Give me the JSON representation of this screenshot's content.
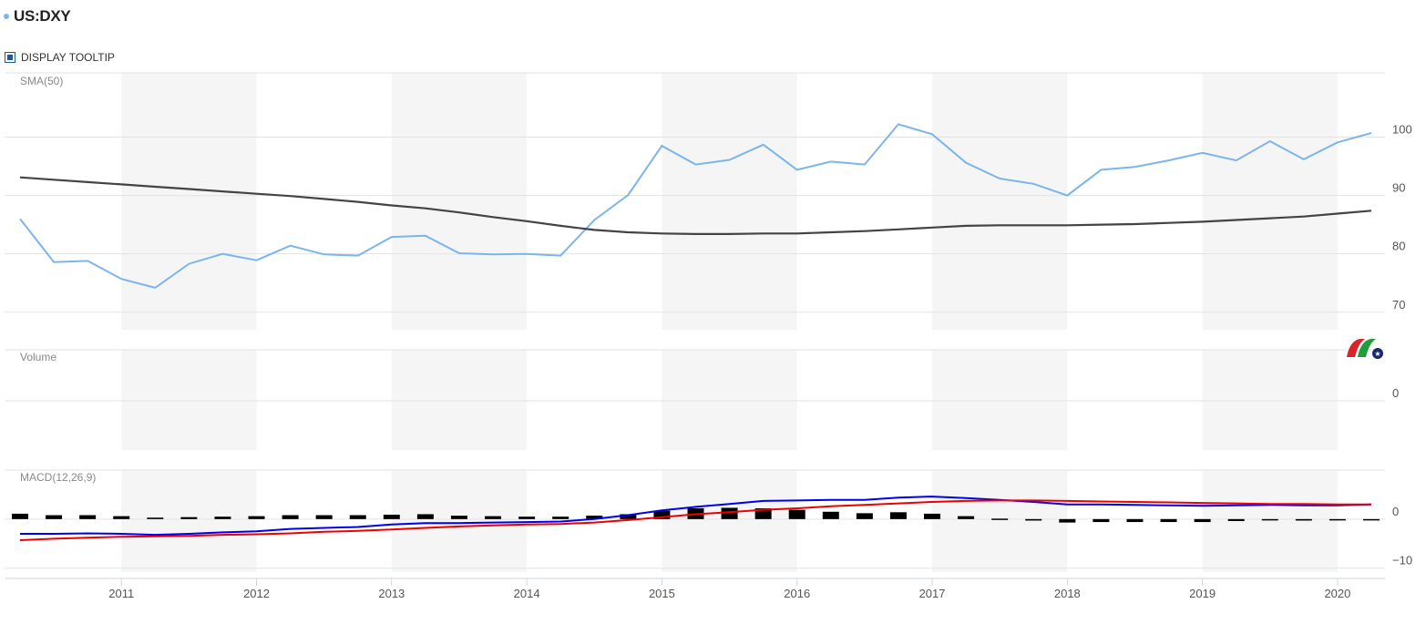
{
  "header": {
    "title": "US:DXY",
    "tooltip_label": "DISPLAY TOOLTIP"
  },
  "colors": {
    "price": "#7cb5ec",
    "sma": "#434348",
    "macd": "#0000ee",
    "signal": "#ee0000",
    "histogram": "#000000",
    "band": "#f5f5f5",
    "grid": "#e3e3e3"
  },
  "chart_data": [
    {
      "type": "line",
      "pane": "price",
      "label": "SMA(50)",
      "x_range": [
        2010.25,
        2020.25
      ],
      "y_ticks": [
        70,
        80,
        90,
        100
      ],
      "y_range": [
        67,
        111
      ],
      "x_tick_labels": [
        "2011",
        "2012",
        "2013",
        "2014",
        "2015",
        "2016",
        "2017",
        "2018",
        "2019",
        "2020"
      ],
      "x_ticks": [
        2011,
        2012,
        2013,
        2014,
        2015,
        2016,
        2017,
        2018,
        2019,
        2020
      ],
      "x": [
        2010.25,
        2010.5,
        2010.75,
        2011.0,
        2011.25,
        2011.5,
        2011.75,
        2012.0,
        2012.25,
        2012.5,
        2012.75,
        2013.0,
        2013.25,
        2013.5,
        2013.75,
        2014.0,
        2014.25,
        2014.5,
        2014.75,
        2015.0,
        2015.25,
        2015.5,
        2015.75,
        2016.0,
        2016.25,
        2016.5,
        2016.75,
        2017.0,
        2017.25,
        2017.5,
        2017.75,
        2018.0,
        2018.25,
        2018.5,
        2018.75,
        2019.0,
        2019.25,
        2019.5,
        2019.75,
        2020.0,
        2020.25
      ],
      "series": [
        {
          "values": [
            86.0,
            78.6,
            78.8,
            75.7,
            74.2,
            78.3,
            80.0,
            78.9,
            81.4,
            79.9,
            79.7,
            82.9,
            83.1,
            80.1,
            79.9,
            80.0,
            79.7,
            85.8,
            90.1,
            98.5,
            95.3,
            96.1,
            98.7,
            94.4,
            95.8,
            95.3,
            102.2,
            100.5,
            95.6,
            92.9,
            92.0,
            90.0,
            94.4,
            94.9,
            96.0,
            97.3,
            96.0,
            99.3,
            96.2,
            99.1,
            100.7
          ]
        },
        {
          "values": [
            93.1,
            92.7,
            92.3,
            91.9,
            91.5,
            91.1,
            90.7,
            90.3,
            89.9,
            89.4,
            88.9,
            88.3,
            87.8,
            87.1,
            86.3,
            85.6,
            84.8,
            84.1,
            83.7,
            83.5,
            83.4,
            83.4,
            83.5,
            83.5,
            83.7,
            83.9,
            84.2,
            84.5,
            84.8,
            84.9,
            84.9,
            84.9,
            85.0,
            85.1,
            85.3,
            85.5,
            85.8,
            86.1,
            86.4,
            86.9,
            87.4
          ]
        }
      ]
    },
    {
      "type": "bar",
      "pane": "volume",
      "label": "Volume",
      "y_ticks": [
        0
      ],
      "values": []
    },
    {
      "type": "line",
      "pane": "macd",
      "label": "MACD(12,26,9)",
      "y_ticks": [
        -10,
        0
      ],
      "y_range": [
        -10.8,
        10
      ],
      "x": [
        2010.25,
        2010.5,
        2010.75,
        2011.0,
        2011.25,
        2011.5,
        2011.75,
        2012.0,
        2012.25,
        2012.5,
        2012.75,
        2013.0,
        2013.25,
        2013.5,
        2013.75,
        2014.0,
        2014.25,
        2014.5,
        2014.75,
        2015.0,
        2015.25,
        2015.5,
        2015.75,
        2016.0,
        2016.25,
        2016.5,
        2016.75,
        2017.0,
        2017.25,
        2017.5,
        2017.75,
        2018.0,
        2018.25,
        2018.5,
        2018.75,
        2019.0,
        2019.25,
        2019.5,
        2019.75,
        2020.0,
        2020.25
      ],
      "series": [
        {
          "values": [
            -3.0,
            -3.0,
            -2.9,
            -3.0,
            -3.2,
            -3.0,
            -2.7,
            -2.5,
            -2.0,
            -1.8,
            -1.6,
            -1.1,
            -0.8,
            -0.8,
            -0.7,
            -0.6,
            -0.5,
            0.0,
            0.8,
            1.8,
            2.5,
            3.1,
            3.7,
            3.8,
            3.9,
            3.9,
            4.4,
            4.6,
            4.3,
            3.9,
            3.5,
            3.0,
            3.0,
            2.9,
            2.8,
            2.7,
            2.8,
            2.9,
            2.8,
            2.8,
            3.0
          ]
        },
        {
          "values": [
            -4.3,
            -4.0,
            -3.8,
            -3.6,
            -3.5,
            -3.4,
            -3.2,
            -3.1,
            -2.9,
            -2.6,
            -2.4,
            -2.1,
            -1.8,
            -1.5,
            -1.3,
            -1.1,
            -1.0,
            -0.7,
            -0.2,
            0.4,
            1.0,
            1.4,
            1.9,
            2.2,
            2.6,
            2.9,
            3.2,
            3.5,
            3.7,
            3.8,
            3.8,
            3.7,
            3.6,
            3.5,
            3.4,
            3.3,
            3.2,
            3.1,
            3.1,
            3.0,
            3.0
          ]
        },
        {
          "values": [
            1.1,
            0.8,
            0.8,
            0.6,
            0.3,
            0.4,
            0.5,
            0.6,
            0.8,
            0.8,
            0.8,
            0.9,
            1.0,
            0.7,
            0.6,
            0.5,
            0.5,
            0.7,
            1.0,
            1.7,
            2.2,
            2.3,
            2.2,
            1.9,
            1.5,
            1.2,
            1.4,
            1.1,
            0.6,
            0.1,
            -0.3,
            -0.7,
            -0.6,
            -0.6,
            -0.6,
            -0.6,
            -0.4,
            -0.2,
            -0.3,
            -0.2,
            0.0
          ]
        }
      ]
    }
  ]
}
